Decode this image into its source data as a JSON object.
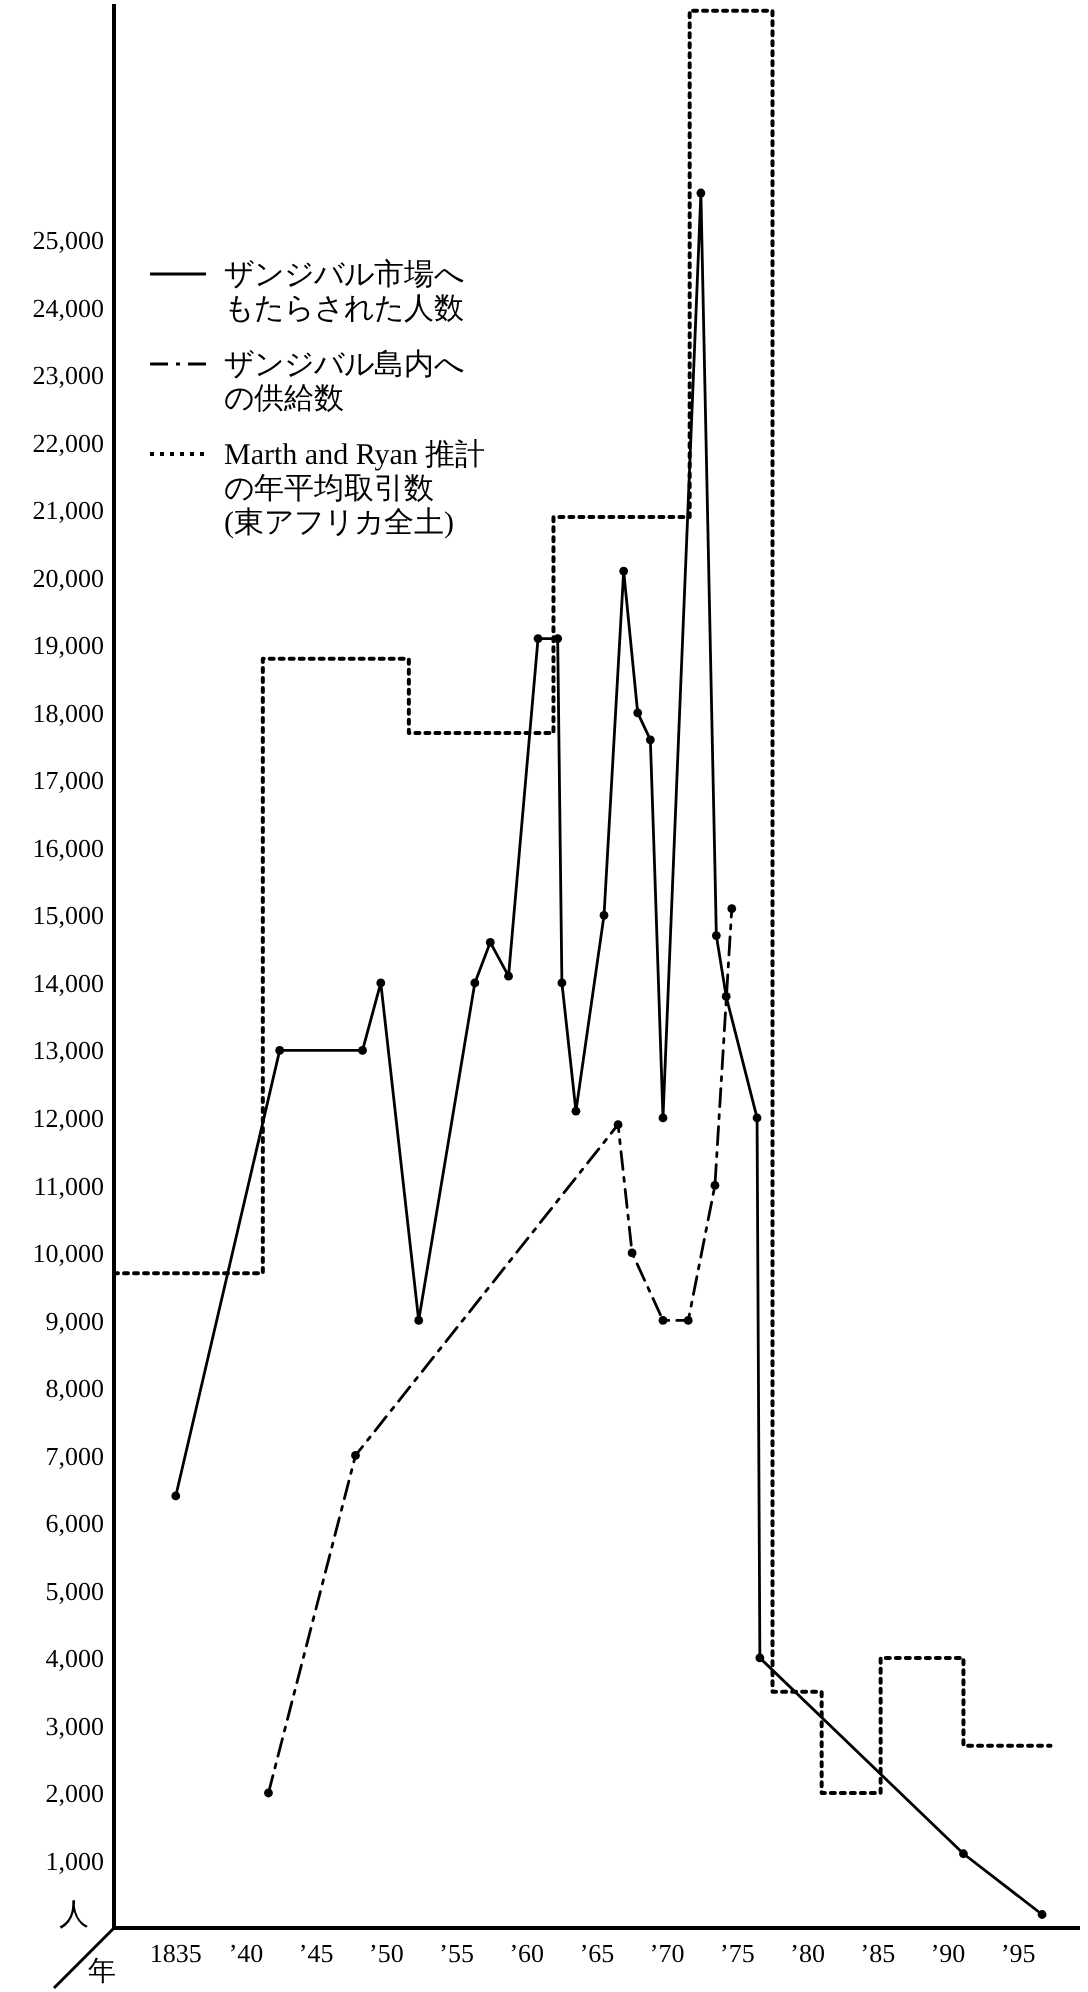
{
  "chart_data": {
    "type": "line",
    "xlabel": "年",
    "ylabel": "人",
    "xlim": [
      1830.6,
      1899.4
    ],
    "ylim": [
      0,
      28500
    ],
    "xticks": [
      {
        "value": 1835,
        "label": "1835"
      },
      {
        "value": 1840,
        "label": "’40"
      },
      {
        "value": 1845,
        "label": "’45"
      },
      {
        "value": 1850,
        "label": "’50"
      },
      {
        "value": 1855,
        "label": "’55"
      },
      {
        "value": 1860,
        "label": "’60"
      },
      {
        "value": 1865,
        "label": "’65"
      },
      {
        "value": 1870,
        "label": "’70"
      },
      {
        "value": 1875,
        "label": "’75"
      },
      {
        "value": 1880,
        "label": "’80"
      },
      {
        "value": 1885,
        "label": "’85"
      },
      {
        "value": 1890,
        "label": "’90"
      },
      {
        "value": 1895,
        "label": "’95"
      }
    ],
    "yticks": [
      {
        "value": 1000,
        "label": "1,000"
      },
      {
        "value": 2000,
        "label": "2,000"
      },
      {
        "value": 3000,
        "label": "3,000"
      },
      {
        "value": 4000,
        "label": "4,000"
      },
      {
        "value": 5000,
        "label": "5,000"
      },
      {
        "value": 6000,
        "label": "6,000"
      },
      {
        "value": 7000,
        "label": "7,000"
      },
      {
        "value": 8000,
        "label": "8,000"
      },
      {
        "value": 9000,
        "label": "9,000"
      },
      {
        "value": 10000,
        "label": "10,000"
      },
      {
        "value": 11000,
        "label": "11,000"
      },
      {
        "value": 12000,
        "label": "12,000"
      },
      {
        "value": 13000,
        "label": "13,000"
      },
      {
        "value": 14000,
        "label": "14,000"
      },
      {
        "value": 15000,
        "label": "15,000"
      },
      {
        "value": 16000,
        "label": "16,000"
      },
      {
        "value": 17000,
        "label": "17,000"
      },
      {
        "value": 18000,
        "label": "18,000"
      },
      {
        "value": 19000,
        "label": "19,000"
      },
      {
        "value": 20000,
        "label": "20,000"
      },
      {
        "value": 21000,
        "label": "21,000"
      },
      {
        "value": 22000,
        "label": "22,000"
      },
      {
        "value": 23000,
        "label": "23,000"
      },
      {
        "value": 24000,
        "label": "24,000"
      },
      {
        "value": 25000,
        "label": "25,000"
      }
    ],
    "legend": "top left",
    "grid": false,
    "series": [
      {
        "name": "ザンジバル市場へもたらされた人数",
        "color": "#000000",
        "marker": "circle",
        "line_style": "solid",
        "x": [
          1835,
          1842.4,
          1848.3,
          1849.6,
          1852.3,
          1856.3,
          1857.4,
          1858.7,
          1860.8,
          1862.2,
          1862.5,
          1863.5,
          1865.5,
          1866.9,
          1867.9,
          1868.8,
          1869.7,
          1872.4,
          1873.5,
          1874.2,
          1876.4,
          1876.6,
          1891.1,
          1896.7
        ],
        "values": [
          6400,
          13000,
          13000,
          14000,
          9000,
          14000,
          14600,
          14100,
          19100,
          19100,
          14000,
          12100,
          15000,
          20100,
          18000,
          17600,
          12000,
          25700,
          14700,
          13800,
          12000,
          4000,
          1100,
          200
        ]
      },
      {
        "name": "ザンジバル島内への供給数",
        "color": "#000000",
        "marker": "circle",
        "line_style": "dashdot",
        "x": [
          1841.6,
          1847.8,
          1866.5,
          1867.5,
          1869.7,
          1871.5,
          1873.4,
          1874.6
        ],
        "values": [
          2000,
          7000,
          11900,
          10000,
          9000,
          9000,
          11000,
          15100
        ]
      },
      {
        "name": "Marth and Ryan 推計の年平均取引数(東アフリカ全土)",
        "type": "step",
        "color": "#000000",
        "marker": "none",
        "line_style": "dotted",
        "x": [
          1830.6,
          1841.2,
          1851.6,
          1861.9,
          1871.6,
          1877.5,
          1881,
          1885.2,
          1891.1,
          1897.3
        ],
        "values": [
          9700,
          18800,
          17700,
          20900,
          28400,
          3500,
          2000,
          4000,
          2700,
          2700
        ]
      }
    ]
  }
}
